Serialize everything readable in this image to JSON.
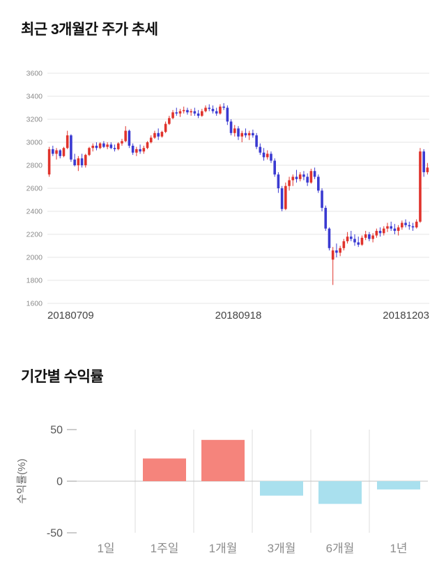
{
  "page": {
    "price_section_title": "최근 3개월간 주가 추세",
    "returns_section_title": "기간별 수익률"
  },
  "chart_data": [
    {
      "type": "candlestick",
      "title": "최근 3개월간 주가 추세",
      "ylim": [
        1600,
        3600
      ],
      "y_ticks": [
        3600,
        3400,
        3200,
        3000,
        2800,
        2600,
        2400,
        2200,
        2000,
        1800,
        1600
      ],
      "x_tick_labels": [
        "20180709",
        "20180918",
        "20181203"
      ],
      "up_color": "#e0332c",
      "down_color": "#3a3ad1",
      "grid_color": "#e5e5e5",
      "y_tick_color": "#8a8a8a",
      "x_tick_color": "#444444",
      "candles": [
        [
          2720,
          2960,
          2700,
          2940
        ],
        [
          2940,
          2970,
          2880,
          2900
        ],
        [
          2900,
          2950,
          2850,
          2930
        ],
        [
          2930,
          2940,
          2860,
          2880
        ],
        [
          2880,
          2960,
          2870,
          2950
        ],
        [
          2950,
          3100,
          2940,
          3060
        ],
        [
          3060,
          3070,
          2830,
          2850
        ],
        [
          2850,
          2900,
          2790,
          2800
        ],
        [
          2800,
          2880,
          2750,
          2860
        ],
        [
          2860,
          2900,
          2780,
          2800
        ],
        [
          2800,
          2900,
          2780,
          2890
        ],
        [
          2890,
          2960,
          2880,
          2950
        ],
        [
          2950,
          2990,
          2920,
          2970
        ],
        [
          2970,
          3000,
          2930,
          2950
        ],
        [
          2950,
          3000,
          2940,
          2990
        ],
        [
          2990,
          3010,
          2950,
          2960
        ],
        [
          2960,
          3000,
          2940,
          2980
        ],
        [
          2980,
          3000,
          2940,
          2950
        ],
        [
          2950,
          2980,
          2920,
          2940
        ],
        [
          2940,
          3000,
          2930,
          2990
        ],
        [
          2990,
          3030,
          2970,
          3010
        ],
        [
          3010,
          3140,
          3000,
          3100
        ],
        [
          3100,
          3110,
          2950,
          2970
        ],
        [
          2970,
          2990,
          2890,
          2910
        ],
        [
          2910,
          2960,
          2880,
          2940
        ],
        [
          2940,
          2980,
          2900,
          2920
        ],
        [
          2920,
          2970,
          2900,
          2950
        ],
        [
          2950,
          3010,
          2940,
          3000
        ],
        [
          3000,
          3060,
          2990,
          3040
        ],
        [
          3040,
          3100,
          3030,
          3080
        ],
        [
          3080,
          3120,
          3020,
          3050
        ],
        [
          3050,
          3100,
          3040,
          3090
        ],
        [
          3090,
          3180,
          3080,
          3160
        ],
        [
          3160,
          3230,
          3150,
          3210
        ],
        [
          3210,
          3280,
          3200,
          3260
        ],
        [
          3260,
          3300,
          3230,
          3250
        ],
        [
          3250,
          3290,
          3220,
          3270
        ],
        [
          3270,
          3310,
          3250,
          3280
        ],
        [
          3280,
          3300,
          3240,
          3260
        ],
        [
          3260,
          3290,
          3230,
          3270
        ],
        [
          3270,
          3300,
          3230,
          3250
        ],
        [
          3250,
          3280,
          3210,
          3230
        ],
        [
          3230,
          3290,
          3220,
          3270
        ],
        [
          3270,
          3320,
          3260,
          3300
        ],
        [
          3300,
          3330,
          3270,
          3290
        ],
        [
          3290,
          3320,
          3250,
          3270
        ],
        [
          3270,
          3300,
          3230,
          3250
        ],
        [
          3250,
          3330,
          3240,
          3310
        ],
        [
          3310,
          3340,
          3280,
          3300
        ],
        [
          3300,
          3320,
          3150,
          3180
        ],
        [
          3180,
          3200,
          3060,
          3080
        ],
        [
          3080,
          3150,
          3050,
          3120
        ],
        [
          3120,
          3140,
          3020,
          3050
        ],
        [
          3050,
          3100,
          3000,
          3080
        ],
        [
          3080,
          3120,
          3040,
          3060
        ],
        [
          3060,
          3100,
          3020,
          3080
        ],
        [
          3080,
          3110,
          3040,
          3060
        ],
        [
          3060,
          3080,
          2940,
          2960
        ],
        [
          2960,
          2990,
          2890,
          2910
        ],
        [
          2910,
          2950,
          2840,
          2870
        ],
        [
          2870,
          2930,
          2850,
          2900
        ],
        [
          2900,
          2920,
          2820,
          2840
        ],
        [
          2840,
          2860,
          2700,
          2720
        ],
        [
          2720,
          2740,
          2560,
          2600
        ],
        [
          2600,
          2620,
          2400,
          2420
        ],
        [
          2420,
          2650,
          2410,
          2620
        ],
        [
          2620,
          2700,
          2580,
          2670
        ],
        [
          2670,
          2720,
          2620,
          2700
        ],
        [
          2700,
          2760,
          2650,
          2680
        ],
        [
          2680,
          2740,
          2660,
          2720
        ],
        [
          2720,
          2750,
          2670,
          2700
        ],
        [
          2700,
          2730,
          2620,
          2650
        ],
        [
          2650,
          2770,
          2640,
          2750
        ],
        [
          2750,
          2780,
          2680,
          2700
        ],
        [
          2700,
          2720,
          2560,
          2580
        ],
        [
          2580,
          2600,
          2400,
          2430
        ],
        [
          2430,
          2450,
          2230,
          2250
        ],
        [
          2250,
          2260,
          2060,
          2080
        ],
        [
          1980,
          2090,
          1760,
          2060
        ],
        [
          2060,
          2120,
          2000,
          2040
        ],
        [
          2040,
          2100,
          2010,
          2080
        ],
        [
          2080,
          2160,
          2060,
          2140
        ],
        [
          2140,
          2220,
          2120,
          2180
        ],
        [
          2180,
          2230,
          2140,
          2160
        ],
        [
          2160,
          2200,
          2100,
          2130
        ],
        [
          2130,
          2180,
          2090,
          2110
        ],
        [
          2110,
          2190,
          2100,
          2170
        ],
        [
          2170,
          2230,
          2150,
          2200
        ],
        [
          2200,
          2220,
          2140,
          2160
        ],
        [
          2160,
          2210,
          2130,
          2190
        ],
        [
          2190,
          2250,
          2170,
          2230
        ],
        [
          2230,
          2260,
          2180,
          2210
        ],
        [
          2210,
          2270,
          2190,
          2250
        ],
        [
          2250,
          2300,
          2220,
          2270
        ],
        [
          2270,
          2310,
          2230,
          2250
        ],
        [
          2250,
          2290,
          2200,
          2230
        ],
        [
          2230,
          2280,
          2190,
          2260
        ],
        [
          2260,
          2320,
          2240,
          2300
        ],
        [
          2300,
          2330,
          2260,
          2280
        ],
        [
          2280,
          2310,
          2240,
          2270
        ],
        [
          2270,
          2300,
          2230,
          2260
        ],
        [
          2260,
          2330,
          2250,
          2310
        ],
        [
          2310,
          2950,
          2300,
          2920
        ],
        [
          2920,
          2940,
          2700,
          2740
        ],
        [
          2740,
          2820,
          2720,
          2780
        ]
      ]
    },
    {
      "type": "bar",
      "title": "기간별 수익률",
      "ylabel": "수익률(%)",
      "categories": [
        "1일",
        "1주일",
        "1개월",
        "3개월",
        "6개월",
        "1년"
      ],
      "values": [
        0,
        22,
        40,
        -14,
        -22,
        -8
      ],
      "ylim": [
        -50,
        50
      ],
      "y_ticks": [
        50,
        0,
        -50
      ],
      "positive_color": "#f5847c",
      "negative_color": "#a9e0ee",
      "grid_color": "#dddddd",
      "zero_line_color": "#c3c3c3",
      "tick_color": "#555555",
      "category_color": "#8c8c8c",
      "ylabel_color": "#666666"
    }
  ]
}
